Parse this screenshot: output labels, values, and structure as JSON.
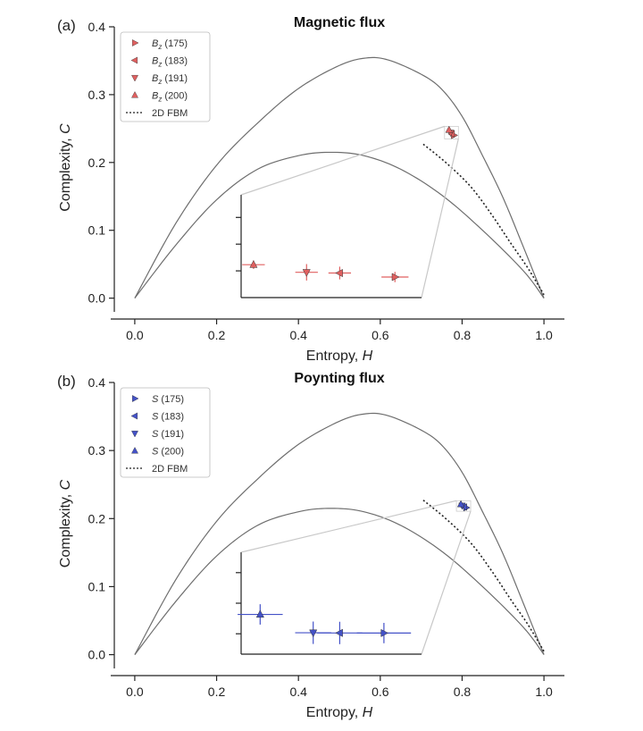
{
  "chart_data": [
    {
      "type": "scatter",
      "panel_label": "(a)",
      "title": "Magnetic flux",
      "xlabel": "Entropy, ",
      "xlabel_var": "H",
      "ylabel": "Complexity, ",
      "ylabel_var": "C",
      "xlim": [
        -0.05,
        1.05
      ],
      "ylim": [
        -0.015,
        0.4
      ],
      "xticks": [
        "0.0",
        "0.2",
        "0.4",
        "0.6",
        "0.8",
        "1.0"
      ],
      "yticks": [
        "0.0",
        "0.1",
        "0.2",
        "0.3",
        "0.4"
      ],
      "legend_position": "top-left",
      "color": "#e06060",
      "series": [
        {
          "name": "B",
          "subscript": "z",
          "suffix": " (175)",
          "marker": "triangle-right",
          "x": 0.78,
          "y": 0.24,
          "inset_x": 0.64,
          "inset_y": 0.2,
          "inset_xerr": 0.03,
          "inset_yerr": 0.05
        },
        {
          "name": "B",
          "subscript": "z",
          "suffix": " (183)",
          "marker": "triangle-left",
          "x": 0.775,
          "y": 0.242,
          "inset_x": 0.515,
          "inset_y": 0.239,
          "inset_xerr": 0.025,
          "inset_yerr": 0.062
        },
        {
          "name": "B",
          "subscript": "z",
          "suffix": " (191)",
          "marker": "triangle-down",
          "x": 0.772,
          "y": 0.244,
          "inset_x": 0.44,
          "inset_y": 0.246,
          "inset_xerr": 0.025,
          "inset_yerr": 0.08
        },
        {
          "name": "B",
          "subscript": "z",
          "suffix": " (200)",
          "marker": "triangle-up",
          "x": 0.768,
          "y": 0.248,
          "inset_x": 0.32,
          "inset_y": 0.32,
          "inset_xerr": 0.025,
          "inset_yerr": 0.042
        }
      ],
      "fbm_label": "2D FBM"
    },
    {
      "type": "scatter",
      "panel_label": "(b)",
      "title": "Poynting flux",
      "xlabel": "Entropy, ",
      "xlabel_var": "H",
      "ylabel": "Complexity, ",
      "ylabel_var": "C",
      "xlim": [
        -0.05,
        1.05
      ],
      "ylim": [
        -0.015,
        0.4
      ],
      "xticks": [
        "0.0",
        "0.2",
        "0.4",
        "0.6",
        "0.8",
        "1.0"
      ],
      "yticks": [
        "0.0",
        "0.1",
        "0.2",
        "0.3",
        "0.4"
      ],
      "legend_position": "top-left",
      "color": "#4452c8",
      "series": [
        {
          "name": "S",
          "subscript": "",
          "suffix": " (175)",
          "marker": "triangle-right",
          "x": 0.81,
          "y": 0.216,
          "inset_x": 0.615,
          "inset_y": 0.207,
          "inset_xerr": 0.06,
          "inset_yerr": 0.1
        },
        {
          "name": "S",
          "subscript": "",
          "suffix": " (183)",
          "marker": "triangle-left",
          "x": 0.805,
          "y": 0.217,
          "inset_x": 0.515,
          "inset_y": 0.208,
          "inset_xerr": 0.05,
          "inset_yerr": 0.11
        },
        {
          "name": "S",
          "subscript": "",
          "suffix": " (191)",
          "marker": "triangle-down",
          "x": 0.8,
          "y": 0.219,
          "inset_x": 0.455,
          "inset_y": 0.21,
          "inset_xerr": 0.04,
          "inset_yerr": 0.11
        },
        {
          "name": "S",
          "subscript": "",
          "suffix": " (200)",
          "marker": "triangle-up",
          "x": 0.797,
          "y": 0.221,
          "inset_x": 0.335,
          "inset_y": 0.39,
          "inset_xerr": 0.05,
          "inset_yerr": 0.1
        }
      ],
      "fbm_label": "2D FBM"
    }
  ]
}
